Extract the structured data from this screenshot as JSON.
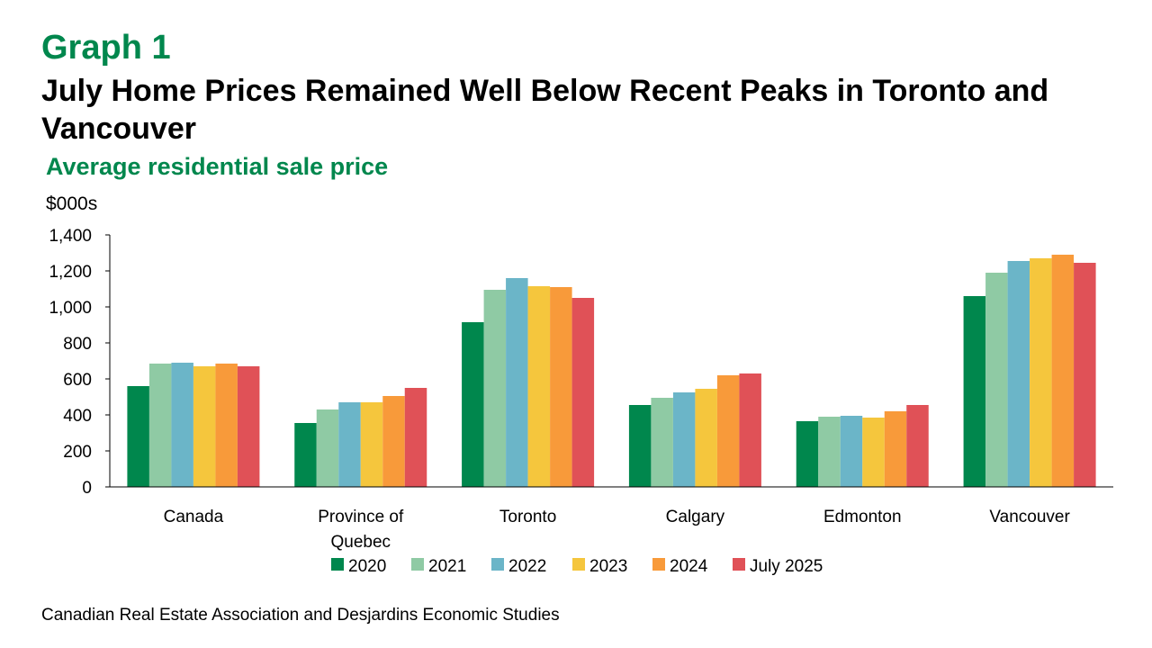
{
  "header": {
    "graph_number": "Graph 1",
    "title": "July Home Prices Remained Well Below Recent Peaks in Toronto and Vancouver",
    "subtitle": "Average residential sale price"
  },
  "footer": {
    "source": "Canadian Real Estate Association and Desjardins Economic Studies"
  },
  "chart_data": {
    "type": "bar",
    "title": "",
    "ylabel": "$000s",
    "xlabel": "",
    "ylim": [
      0,
      1400
    ],
    "yticks": [
      0,
      200,
      400,
      600,
      800,
      1000,
      1200,
      1400
    ],
    "ytick_labels": [
      "0",
      "200",
      "400",
      "600",
      "800",
      "1,000",
      "1,200",
      "1,400"
    ],
    "grid": false,
    "legend_position": "bottom",
    "categories": [
      "Canada",
      "Province of Quebec",
      "Toronto",
      "Calgary",
      "Edmonton",
      "Vancouver"
    ],
    "category_lines": [
      [
        "Canada"
      ],
      [
        "Province of",
        "Quebec"
      ],
      [
        "Toronto"
      ],
      [
        "Calgary"
      ],
      [
        "Edmonton"
      ],
      [
        "Vancouver"
      ]
    ],
    "series": [
      {
        "name": "2020",
        "color": "#00874d",
        "values": [
          560,
          355,
          915,
          455,
          365,
          1060
        ]
      },
      {
        "name": "2021",
        "color": "#8fcaa4",
        "values": [
          685,
          430,
          1095,
          495,
          390,
          1190
        ]
      },
      {
        "name": "2022",
        "color": "#6bb5c8",
        "values": [
          690,
          470,
          1160,
          525,
          395,
          1255
        ]
      },
      {
        "name": "2023",
        "color": "#f5c63d",
        "values": [
          670,
          470,
          1115,
          545,
          385,
          1270
        ]
      },
      {
        "name": "2024",
        "color": "#f89a3a",
        "values": [
          685,
          505,
          1110,
          620,
          420,
          1290
        ]
      },
      {
        "name": "July 2025",
        "color": "#e05157",
        "values": [
          670,
          550,
          1050,
          630,
          455,
          1245
        ]
      }
    ]
  }
}
